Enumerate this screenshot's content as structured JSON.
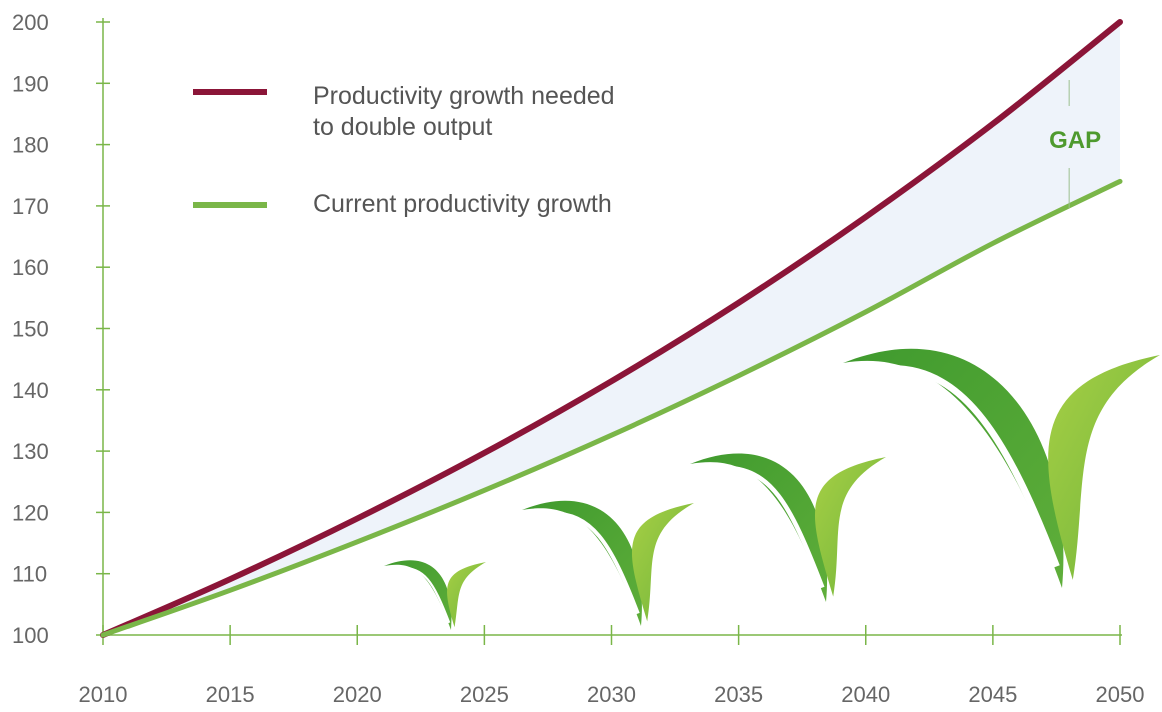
{
  "chart_data": {
    "type": "line",
    "x": [
      2010,
      2015,
      2020,
      2025,
      2030,
      2035,
      2040,
      2045,
      2050
    ],
    "xticks": [
      "2010",
      "2015",
      "2020",
      "2025",
      "2030",
      "2035",
      "2040",
      "2045",
      "2050"
    ],
    "yticks": [
      "100",
      "110",
      "120",
      "130",
      "140",
      "150",
      "160",
      "170",
      "180",
      "190",
      "200"
    ],
    "xlim": [
      2010,
      2050
    ],
    "ylim": [
      100,
      200
    ],
    "series": [
      {
        "name": "Productivity growth needed to double output",
        "name_lines": [
          "Productivity growth needed",
          "to double output"
        ],
        "color": "#8b1538",
        "values": [
          100,
          109.1,
          119,
          129.7,
          141.4,
          154.2,
          168.2,
          183.4,
          200
        ]
      },
      {
        "name": "Current productivity growth",
        "name_lines": [
          "Current productivity growth"
        ],
        "color": "#7ab648",
        "values": [
          100,
          107.3,
          115.2,
          123.6,
          132.6,
          142.3,
          152.7,
          163.9,
          174
        ]
      }
    ],
    "annotations": [
      {
        "text": "GAP",
        "x": 2048,
        "color": "#4e9a2e"
      }
    ],
    "gap_fill_color": "#eef3fa",
    "axis_color": "#7ab648",
    "legend_position": "top-left",
    "grid": false
  }
}
